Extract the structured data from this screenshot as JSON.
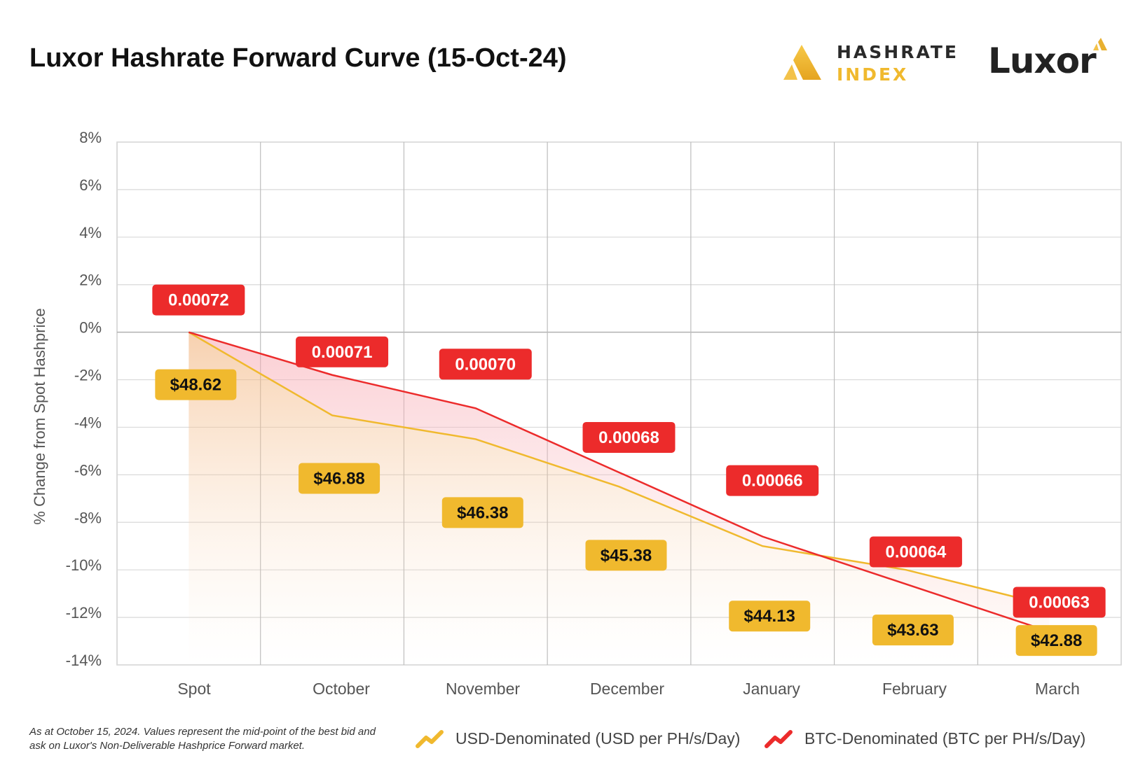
{
  "title": "Luxor Hashrate Forward Curve (15-Oct-24)",
  "logos": {
    "hashrate_index_line1": "HASHRATE",
    "hashrate_index_line2": "INDEX",
    "luxor": "Luxor"
  },
  "footnote": "As at October 15, 2024. Values represent the mid-point of the best bid and ask on Luxor's Non-Deliverable Hashprice Forward market.",
  "colors": {
    "usd": "#f0b92e",
    "btc": "#ec2b2b",
    "grid": "#cfcfcf",
    "text": "#555555"
  },
  "chart_data": {
    "type": "line",
    "title": "Luxor Hashrate Forward Curve (15-Oct-24)",
    "xlabel": "",
    "ylabel": "% Change from Spot Hashprice",
    "ylim": [
      -14,
      8
    ],
    "yticks": [
      8,
      6,
      4,
      2,
      0,
      -2,
      -4,
      -6,
      -8,
      -10,
      -12,
      -14
    ],
    "ytick_labels": [
      "8%",
      "6%",
      "4%",
      "2%",
      "0%",
      "-2%",
      "-4%",
      "-6%",
      "-8%",
      "-10%",
      "-12%",
      "-14%"
    ],
    "categories": [
      "Spot",
      "October",
      "November",
      "December",
      "January",
      "February",
      "March"
    ],
    "grid": true,
    "legend_position": "bottom",
    "series": [
      {
        "name": "USD-Denominated (USD per PH/s/Day)",
        "key": "usd",
        "values": [
          0.0,
          -3.5,
          -4.5,
          -6.5,
          -9.0,
          -10.0,
          -11.5
        ],
        "labels": [
          "$48.62",
          "$46.88",
          "$46.38",
          "$45.38",
          "$44.13",
          "$43.63",
          "$42.88"
        ]
      },
      {
        "name": "BTC-Denominated (BTC per PH/s/Day)",
        "key": "btc",
        "values": [
          0.0,
          -1.8,
          -3.2,
          -5.9,
          -8.6,
          -10.6,
          -12.6
        ],
        "labels": [
          "0.00072",
          "0.00071",
          "0.00070",
          "0.00068",
          "0.00066",
          "0.00064",
          "0.00063"
        ]
      }
    ]
  }
}
